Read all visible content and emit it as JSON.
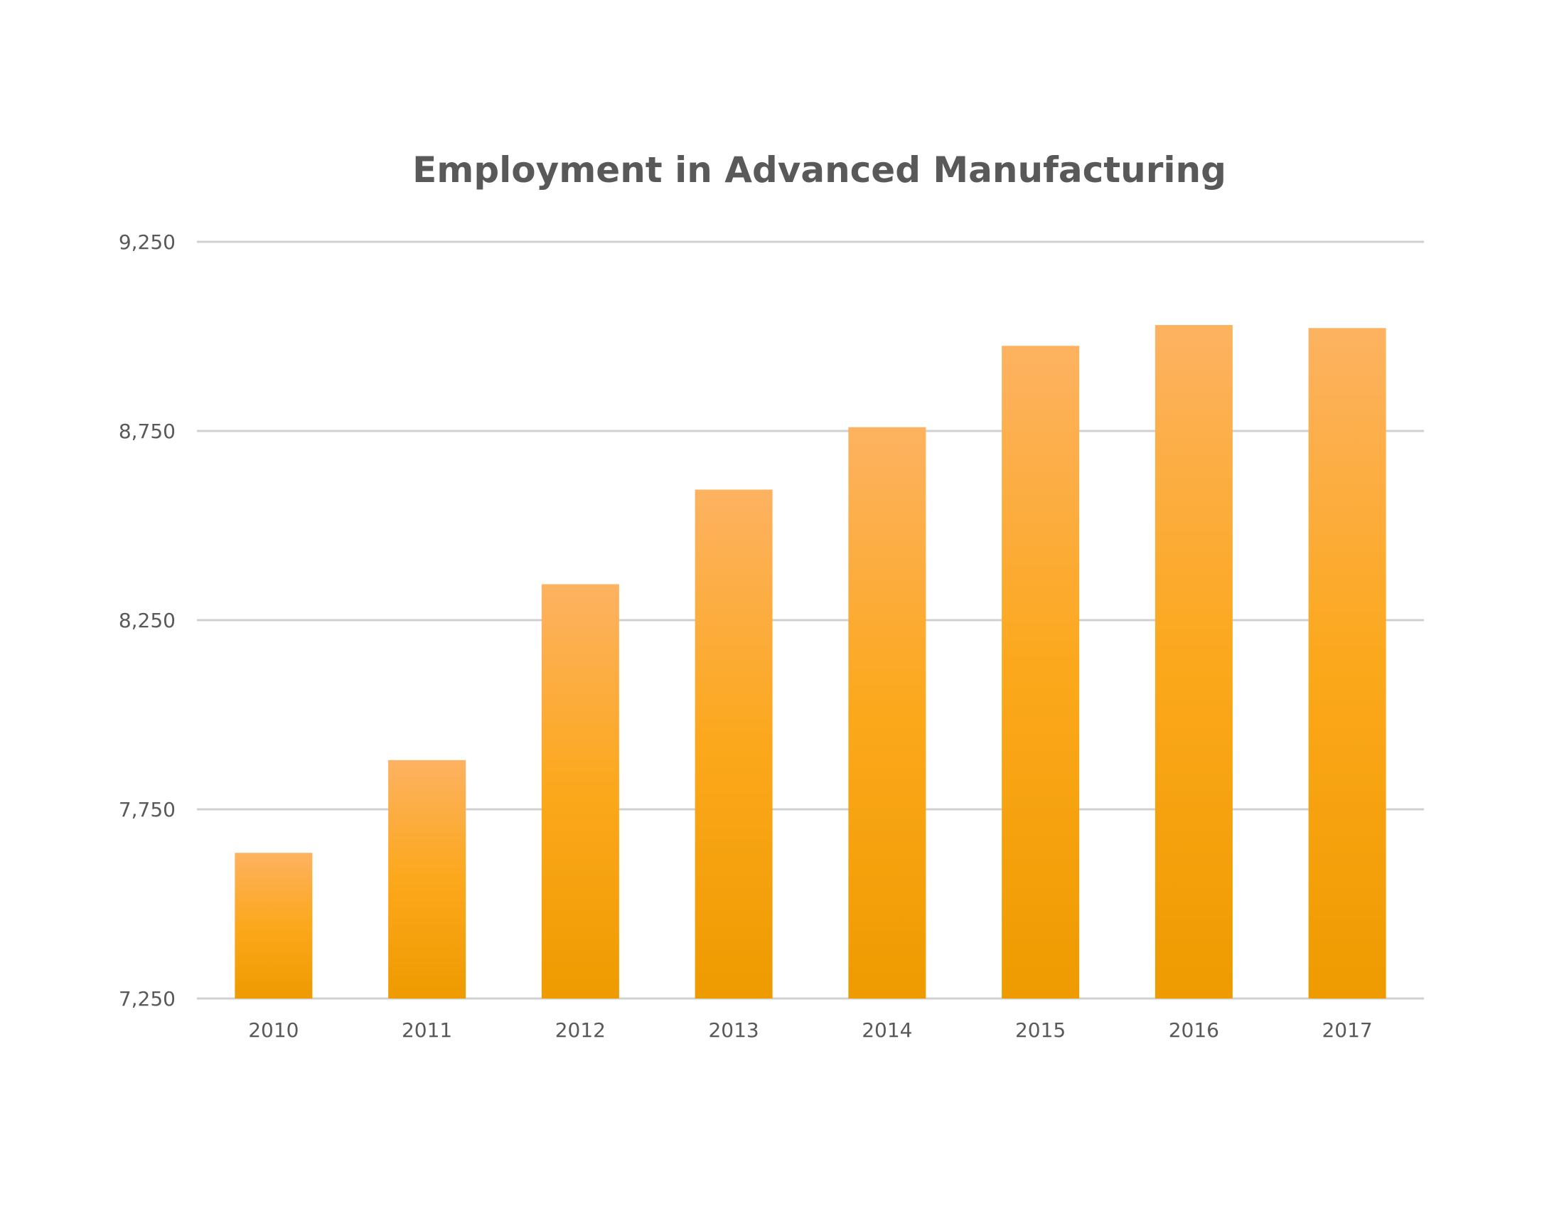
{
  "chart_data": {
    "type": "bar",
    "title": "Employment in Advanced Manufacturing",
    "xlabel": "",
    "ylabel": "",
    "categories": [
      "2010",
      "2011",
      "2012",
      "2013",
      "2014",
      "2015",
      "2016",
      "2017"
    ],
    "values": [
      7635,
      7880,
      8345,
      8595,
      8760,
      8975,
      9030,
      9022
    ],
    "ylim": [
      7250,
      9250
    ],
    "yticks": [
      7250,
      7750,
      8250,
      8750,
      9250
    ],
    "ytick_labels": [
      "7,250",
      "7,750",
      "8,250",
      "8,750",
      "9,250"
    ],
    "grid": true,
    "legend": "none",
    "bar_color_top": "#fdb261",
    "bar_color_mid": "#fca81c",
    "bar_color_bottom": "#ee9b00"
  }
}
